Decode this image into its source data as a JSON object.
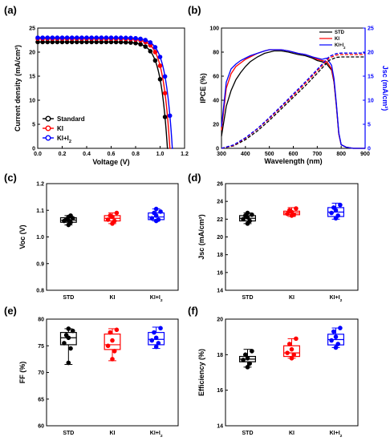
{
  "chart_data": [
    {
      "panel": "(a)",
      "type": "line",
      "xlabel": "Voltage (V)",
      "ylabel": "Current density (mA/cm²)",
      "xlim": [
        0.0,
        1.2
      ],
      "ylim": [
        0,
        25
      ],
      "xticks": [
        "0.0",
        "0.2",
        "0.4",
        "0.6",
        "0.8",
        "1.0",
        "1.2"
      ],
      "yticks": [
        "0",
        "5",
        "10",
        "15",
        "20",
        "25"
      ],
      "legend_position": "bottom-left",
      "series": [
        {
          "name": "Standard",
          "color": "#000000",
          "jsc": 22.1,
          "voc": 1.06,
          "n": 2.2
        },
        {
          "name": "KI",
          "color": "#ff0000",
          "jsc": 22.8,
          "voc": 1.08,
          "n": 2.2
        },
        {
          "name": "KI+I2",
          "color": "#0000ff",
          "jsc": 23.0,
          "voc": 1.1,
          "n": 2.2
        }
      ]
    },
    {
      "panel": "(b)",
      "type": "line",
      "xlabel": "Wavelength (nm)",
      "ylabel": "IPCE (%)",
      "y2label": "Jsc (mA/cm²)",
      "xlim": [
        300,
        900
      ],
      "ylim": [
        0,
        100
      ],
      "y2lim": [
        0,
        25
      ],
      "xticks": [
        "300",
        "400",
        "500",
        "600",
        "700",
        "800",
        "900"
      ],
      "yticks": [
        "0",
        "20",
        "40",
        "60",
        "80",
        "100"
      ],
      "y2ticks": [
        "0",
        "5",
        "10",
        "15",
        "20",
        "25"
      ],
      "legend_position": "top-right",
      "legend": [
        "STD",
        "KI",
        "KI+I2"
      ],
      "ipce": {
        "x": [
          300,
          320,
          340,
          360,
          380,
          400,
          420,
          450,
          480,
          500,
          520,
          550,
          580,
          600,
          620,
          650,
          680,
          700,
          720,
          740,
          760,
          770,
          780,
          790,
          800,
          820,
          850,
          900
        ],
        "series": [
          {
            "name": "STD",
            "color": "#000000",
            "values": [
              10,
              35,
              48,
              57,
              63,
              68,
              72,
              76,
              79,
              80,
              81,
              81,
              80,
              79,
              78,
              77,
              75,
              73,
              72,
              70,
              65,
              55,
              35,
              12,
              3,
              1,
              0,
              0
            ]
          },
          {
            "name": "KI",
            "color": "#ff0000",
            "values": [
              15,
              50,
              62,
              68,
              71,
              74,
              76,
              79,
              81,
              82,
              82,
              82,
              81,
              80,
              79,
              78,
              76,
              74,
              73,
              72,
              66,
              56,
              36,
              12,
              3,
              1,
              0,
              0
            ]
          },
          {
            "name": "KI+I2",
            "color": "#0000ff",
            "values": [
              18,
              55,
              66,
              70,
              73,
              75,
              77,
              79,
              81,
              82,
              82,
              82,
              81,
              80,
              79,
              78,
              76,
              75,
              74,
              75,
              69,
              58,
              37,
              13,
              3,
              1,
              0,
              0
            ]
          }
        ]
      },
      "integrated_jsc": {
        "x": [
          300,
          350,
          400,
          450,
          500,
          550,
          600,
          650,
          700,
          750,
          780,
          800,
          850,
          900
        ],
        "series": [
          {
            "name": "STD",
            "color": "#000000",
            "values": [
              0,
              0.5,
              1.8,
              3.6,
              5.8,
              8.2,
              10.6,
              13.0,
              15.6,
              18.3,
              18.9,
              19.0,
              19.0,
              19.0
            ]
          },
          {
            "name": "KI",
            "color": "#ff0000",
            "values": [
              0,
              0.6,
              2.1,
              4.0,
              6.2,
              8.6,
              11.0,
              13.5,
              16.1,
              18.8,
              19.4,
              19.5,
              19.5,
              19.5
            ]
          },
          {
            "name": "KI+I2",
            "color": "#0000ff",
            "values": [
              0,
              0.7,
              2.2,
              4.1,
              6.4,
              8.8,
              11.3,
              13.8,
              16.4,
              19.1,
              19.7,
              19.8,
              19.8,
              19.8
            ]
          }
        ]
      }
    },
    {
      "panel": "(c)",
      "type": "box",
      "ylabel": "Voc (V)",
      "ylim": [
        0.8,
        1.2
      ],
      "yticks": [
        "0.8",
        "0.9",
        "1.0",
        "1.1",
        "1.2"
      ],
      "categories": [
        "STD",
        "KI",
        "KI+I2"
      ],
      "colors": [
        "#000000",
        "#ff0000",
        "#0000ff"
      ],
      "boxes": [
        {
          "min": 1.045,
          "q1": 1.055,
          "median": 1.063,
          "q3": 1.072,
          "max": 1.08,
          "points": [
            1.045,
            1.055,
            1.06,
            1.063,
            1.066,
            1.07,
            1.075,
            1.08
          ]
        },
        {
          "min": 1.05,
          "q1": 1.06,
          "median": 1.07,
          "q3": 1.08,
          "max": 1.09,
          "points": [
            1.05,
            1.06,
            1.065,
            1.075,
            1.08,
            1.09
          ]
        },
        {
          "min": 1.06,
          "q1": 1.065,
          "median": 1.075,
          "q3": 1.09,
          "max": 1.105,
          "points": [
            1.06,
            1.065,
            1.07,
            1.08,
            1.09,
            1.095,
            1.105
          ]
        }
      ]
    },
    {
      "panel": "(d)",
      "type": "box",
      "ylabel": "Jsc (mA/cm²)",
      "ylim": [
        14,
        26
      ],
      "yticks": [
        "14",
        "16",
        "18",
        "20",
        "22",
        "24",
        "26"
      ],
      "categories": [
        "STD",
        "KI",
        "KI+I2"
      ],
      "colors": [
        "#000000",
        "#ff0000",
        "#0000ff"
      ],
      "boxes": [
        {
          "min": 21.5,
          "q1": 21.8,
          "median": 22.1,
          "q3": 22.4,
          "max": 22.7,
          "points": [
            21.5,
            21.8,
            22.0,
            22.2,
            22.4,
            22.5,
            22.7
          ]
        },
        {
          "min": 22.3,
          "q1": 22.5,
          "median": 22.7,
          "q3": 22.9,
          "max": 23.3,
          "points": [
            22.4,
            22.5,
            22.6,
            22.8,
            23.0,
            23.2
          ]
        },
        {
          "min": 22.0,
          "q1": 22.3,
          "median": 22.8,
          "q3": 23.3,
          "max": 23.8,
          "points": [
            22.1,
            22.4,
            22.7,
            23.0,
            23.3,
            23.6
          ]
        }
      ]
    },
    {
      "panel": "(e)",
      "type": "box",
      "ylabel": "FF (%)",
      "ylim": [
        60,
        80
      ],
      "yticks": [
        "60",
        "65",
        "70",
        "75",
        "80"
      ],
      "categories": [
        "STD",
        "KI",
        "KI+I2"
      ],
      "colors": [
        "#000000",
        "#ff0000",
        "#0000ff"
      ],
      "boxes": [
        {
          "min": 71.5,
          "q1": 75.2,
          "median": 76.5,
          "q3": 77.5,
          "max": 78.2,
          "points": [
            71.8,
            74.5,
            75.5,
            76.5,
            77.0,
            77.8,
            78.2
          ]
        },
        {
          "min": 72.2,
          "q1": 74.3,
          "median": 75.2,
          "q3": 77.2,
          "max": 78.2,
          "points": [
            72.5,
            74.0,
            75.0,
            76.0,
            77.5,
            78.0
          ]
        },
        {
          "min": 74.5,
          "q1": 75.2,
          "median": 76.2,
          "q3": 77.5,
          "max": 78.5,
          "points": [
            74.8,
            75.5,
            76.0,
            76.5,
            77.5,
            78.3
          ]
        }
      ]
    },
    {
      "panel": "(f)",
      "type": "box",
      "ylabel": "Efficiency (%)",
      "ylim": [
        14,
        20
      ],
      "yticks": [
        "14",
        "16",
        "18",
        "20"
      ],
      "categories": [
        "STD",
        "KI",
        "KI+I2"
      ],
      "colors": [
        "#000000",
        "#ff0000",
        "#0000ff"
      ],
      "boxes": [
        {
          "min": 17.3,
          "q1": 17.6,
          "median": 17.75,
          "q3": 17.9,
          "max": 18.3,
          "points": [
            17.3,
            17.5,
            17.7,
            17.8,
            18.0,
            18.2
          ]
        },
        {
          "min": 17.8,
          "q1": 17.9,
          "median": 18.1,
          "q3": 18.5,
          "max": 18.9,
          "points": [
            17.8,
            18.0,
            18.1,
            18.3,
            18.6,
            18.9
          ]
        },
        {
          "min": 18.4,
          "q1": 18.55,
          "median": 18.85,
          "q3": 19.15,
          "max": 19.5,
          "points": [
            18.4,
            18.6,
            18.8,
            19.0,
            19.3,
            19.5
          ]
        }
      ]
    }
  ]
}
